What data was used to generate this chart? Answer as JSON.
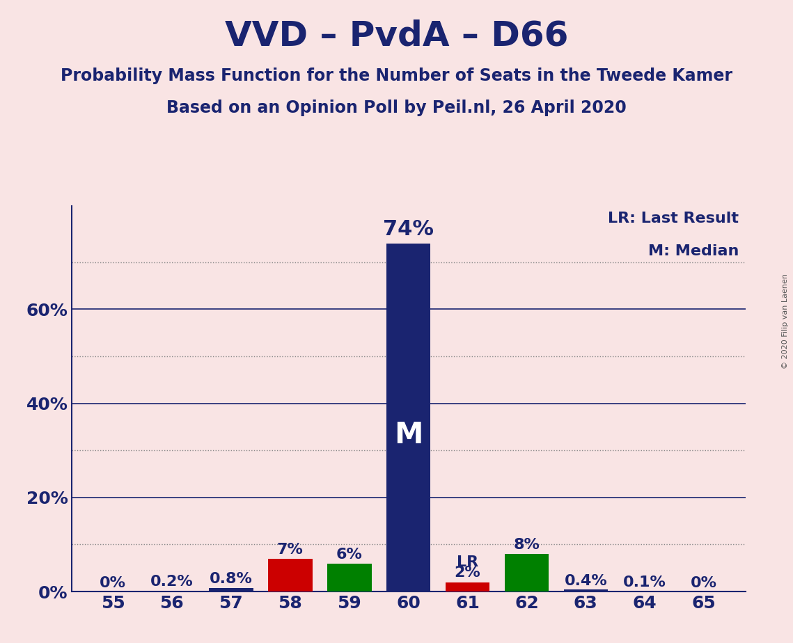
{
  "title": "VVD – PvdA – D66",
  "subtitle1": "Probability Mass Function for the Number of Seats in the Tweede Kamer",
  "subtitle2": "Based on an Opinion Poll by Peil.nl, 26 April 2020",
  "copyright": "© 2020 Filip van Laenen",
  "seats": [
    55,
    56,
    57,
    58,
    59,
    60,
    61,
    62,
    63,
    64,
    65
  ],
  "values": [
    0.0,
    0.002,
    0.008,
    0.07,
    0.06,
    0.74,
    0.02,
    0.08,
    0.004,
    0.001,
    0.0
  ],
  "labels": [
    "0%",
    "0.2%",
    "0.8%",
    "7%",
    "6%",
    "74%",
    "2%",
    "8%",
    "0.4%",
    "0.1%",
    "0%"
  ],
  "colors": [
    "#1a2470",
    "#1a2470",
    "#1a2470",
    "#cc0000",
    "#008000",
    "#1a2470",
    "#cc0000",
    "#008000",
    "#1a2470",
    "#1a2470",
    "#1a2470"
  ],
  "median_seat": 60,
  "last_result_seat": 61,
  "background_color": "#f9e4e4",
  "solid_yticks": [
    0.0,
    0.2,
    0.4,
    0.6
  ],
  "solid_ytick_labels": [
    "0%",
    "20%",
    "40%",
    "60%"
  ],
  "dotted_yticks": [
    0.1,
    0.3,
    0.5,
    0.7
  ],
  "ylim": [
    0,
    0.82
  ],
  "legend_lr": "LR: Last Result",
  "legend_m": "M: Median",
  "title_fontsize": 36,
  "subtitle_fontsize": 17,
  "axis_label_fontsize": 18,
  "bar_label_fontsize": 16,
  "bar_label_74_fontsize": 22,
  "legend_fontsize": 16,
  "grid_solid_color": "#1a2470",
  "grid_dotted_color": "#888888",
  "grid_linewidth": 1.0,
  "bar_width": 0.75
}
